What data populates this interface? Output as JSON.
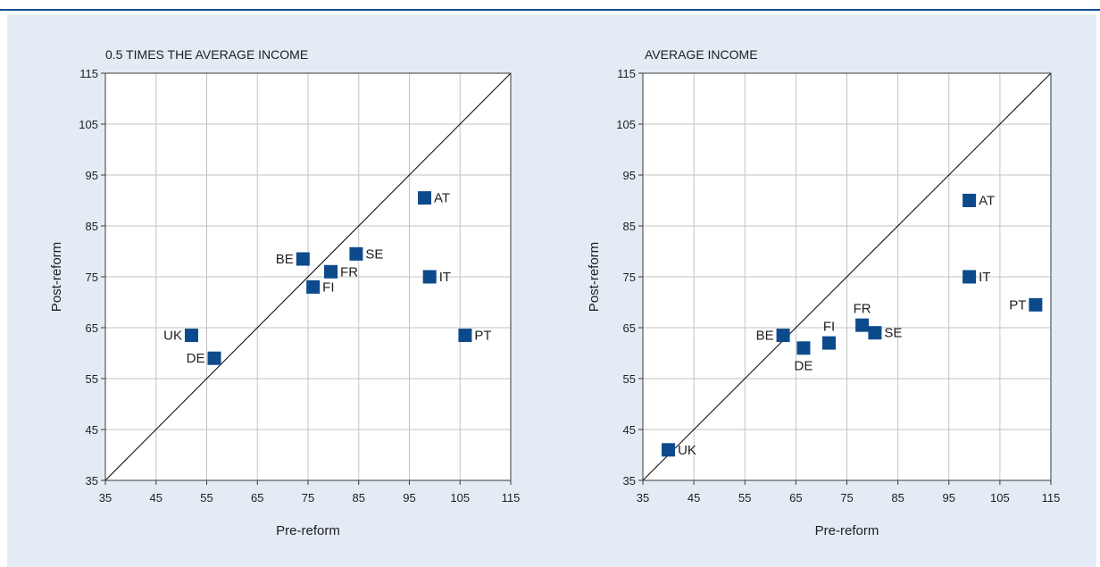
{
  "chart_data": [
    {
      "type": "scatter",
      "title": "0.5 TIMES THE AVERAGE INCOME",
      "xlabel": "Pre-reform",
      "ylabel": "Post-reform",
      "xlim": [
        35,
        115
      ],
      "ylim": [
        35,
        115
      ],
      "ticks": [
        35,
        45,
        55,
        65,
        75,
        85,
        95,
        105,
        115
      ],
      "grid": true,
      "reference_line": "45-degree diagonal",
      "marker_color": "#0d4a8c",
      "points": [
        {
          "label": "UK",
          "x": 52,
          "y": 63.5,
          "label_side": "left"
        },
        {
          "label": "DE",
          "x": 56.5,
          "y": 59,
          "label_side": "left"
        },
        {
          "label": "BE",
          "x": 74,
          "y": 78.5,
          "label_side": "left"
        },
        {
          "label": "FI",
          "x": 76,
          "y": 73,
          "label_side": "right"
        },
        {
          "label": "FR",
          "x": 79.5,
          "y": 76,
          "label_side": "right"
        },
        {
          "label": "SE",
          "x": 84.5,
          "y": 79.5,
          "label_side": "right"
        },
        {
          "label": "AT",
          "x": 98,
          "y": 90.5,
          "label_side": "right"
        },
        {
          "label": "IT",
          "x": 99,
          "y": 75,
          "label_side": "right"
        },
        {
          "label": "PT",
          "x": 106,
          "y": 63.5,
          "label_side": "right"
        }
      ]
    },
    {
      "type": "scatter",
      "title": "AVERAGE INCOME",
      "xlabel": "Pre-reform",
      "ylabel": "Post-reform",
      "xlim": [
        35,
        115
      ],
      "ylim": [
        35,
        115
      ],
      "ticks": [
        35,
        45,
        55,
        65,
        75,
        85,
        95,
        105,
        115
      ],
      "grid": true,
      "reference_line": "45-degree diagonal",
      "marker_color": "#0d4a8c",
      "points": [
        {
          "label": "UK",
          "x": 40,
          "y": 41,
          "label_side": "right"
        },
        {
          "label": "BE",
          "x": 62.5,
          "y": 63.5,
          "label_side": "left"
        },
        {
          "label": "DE",
          "x": 66.5,
          "y": 61,
          "label_side": "below"
        },
        {
          "label": "FI",
          "x": 71.5,
          "y": 62,
          "label_side": "above"
        },
        {
          "label": "FR",
          "x": 78,
          "y": 65.5,
          "label_side": "above"
        },
        {
          "label": "SE",
          "x": 80.5,
          "y": 64,
          "label_side": "right"
        },
        {
          "label": "AT",
          "x": 99,
          "y": 90,
          "label_side": "right"
        },
        {
          "label": "IT",
          "x": 99,
          "y": 75,
          "label_side": "right"
        },
        {
          "label": "PT",
          "x": 112,
          "y": 69.5,
          "label_side": "left"
        }
      ]
    }
  ]
}
